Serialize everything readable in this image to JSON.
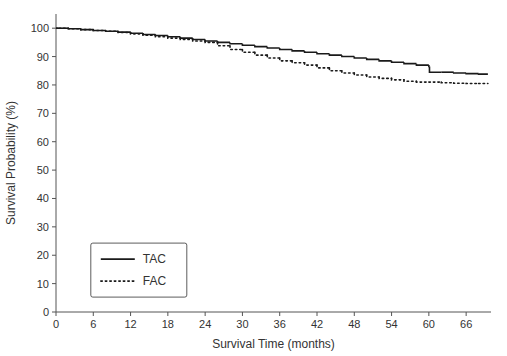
{
  "chart_data": {
    "type": "step",
    "xlabel": "Survival Time (months)",
    "ylabel": "Survival Probability (%)",
    "xlim": [
      0,
      70
    ],
    "ylim": [
      0,
      105
    ],
    "xticks": [
      0,
      6,
      12,
      18,
      24,
      30,
      36,
      42,
      48,
      54,
      60,
      66
    ],
    "yticks": [
      0,
      10,
      20,
      30,
      40,
      50,
      60,
      70,
      80,
      90,
      100
    ],
    "grid": false,
    "legend": "lower left",
    "series": [
      {
        "name": "TAC",
        "color": "#1a1a1a",
        "line_style": "solid",
        "x": [
          0,
          0.5,
          2,
          4,
          6,
          8,
          10,
          12,
          14,
          16,
          18,
          20,
          22,
          24,
          26,
          28,
          30,
          32,
          34,
          36,
          38,
          40,
          42,
          44,
          46,
          48,
          50,
          52,
          54,
          56,
          58,
          60,
          60.1,
          62,
          64,
          66,
          68,
          69.5
        ],
        "values": [
          100,
          100,
          99.8,
          99.5,
          99.2,
          98.9,
          98.6,
          98.2,
          97.8,
          97.4,
          97.0,
          96.5,
          96.0,
          95.5,
          95.0,
          94.5,
          94.0,
          93.5,
          93.0,
          92.5,
          92.0,
          91.5,
          91.0,
          90.5,
          90.0,
          89.5,
          89.0,
          88.5,
          88.0,
          87.5,
          87.0,
          86.5,
          84.5,
          84.5,
          84.2,
          84.0,
          83.8,
          83.8
        ]
      },
      {
        "name": "FAC",
        "color": "#1a1a1a",
        "line_style": "dotted",
        "x": [
          0,
          0.5,
          2,
          4,
          6,
          8,
          10,
          12,
          14,
          16,
          18,
          20,
          22,
          24,
          26,
          28,
          30,
          32,
          34,
          36,
          38,
          40,
          42,
          44,
          46,
          48,
          50,
          52,
          54,
          56,
          58,
          60,
          62,
          64,
          66,
          68,
          69.5
        ],
        "values": [
          100,
          100,
          99.8,
          99.5,
          99.2,
          98.9,
          98.5,
          98.0,
          97.5,
          97.0,
          96.5,
          96.0,
          95.5,
          95.0,
          93.8,
          92.5,
          91.5,
          90.5,
          89.5,
          88.5,
          87.8,
          87.0,
          86.0,
          85.0,
          84.2,
          83.5,
          82.8,
          82.3,
          81.8,
          81.3,
          81.0,
          81.0,
          80.8,
          80.6,
          80.5,
          80.5,
          80.5
        ]
      }
    ]
  }
}
